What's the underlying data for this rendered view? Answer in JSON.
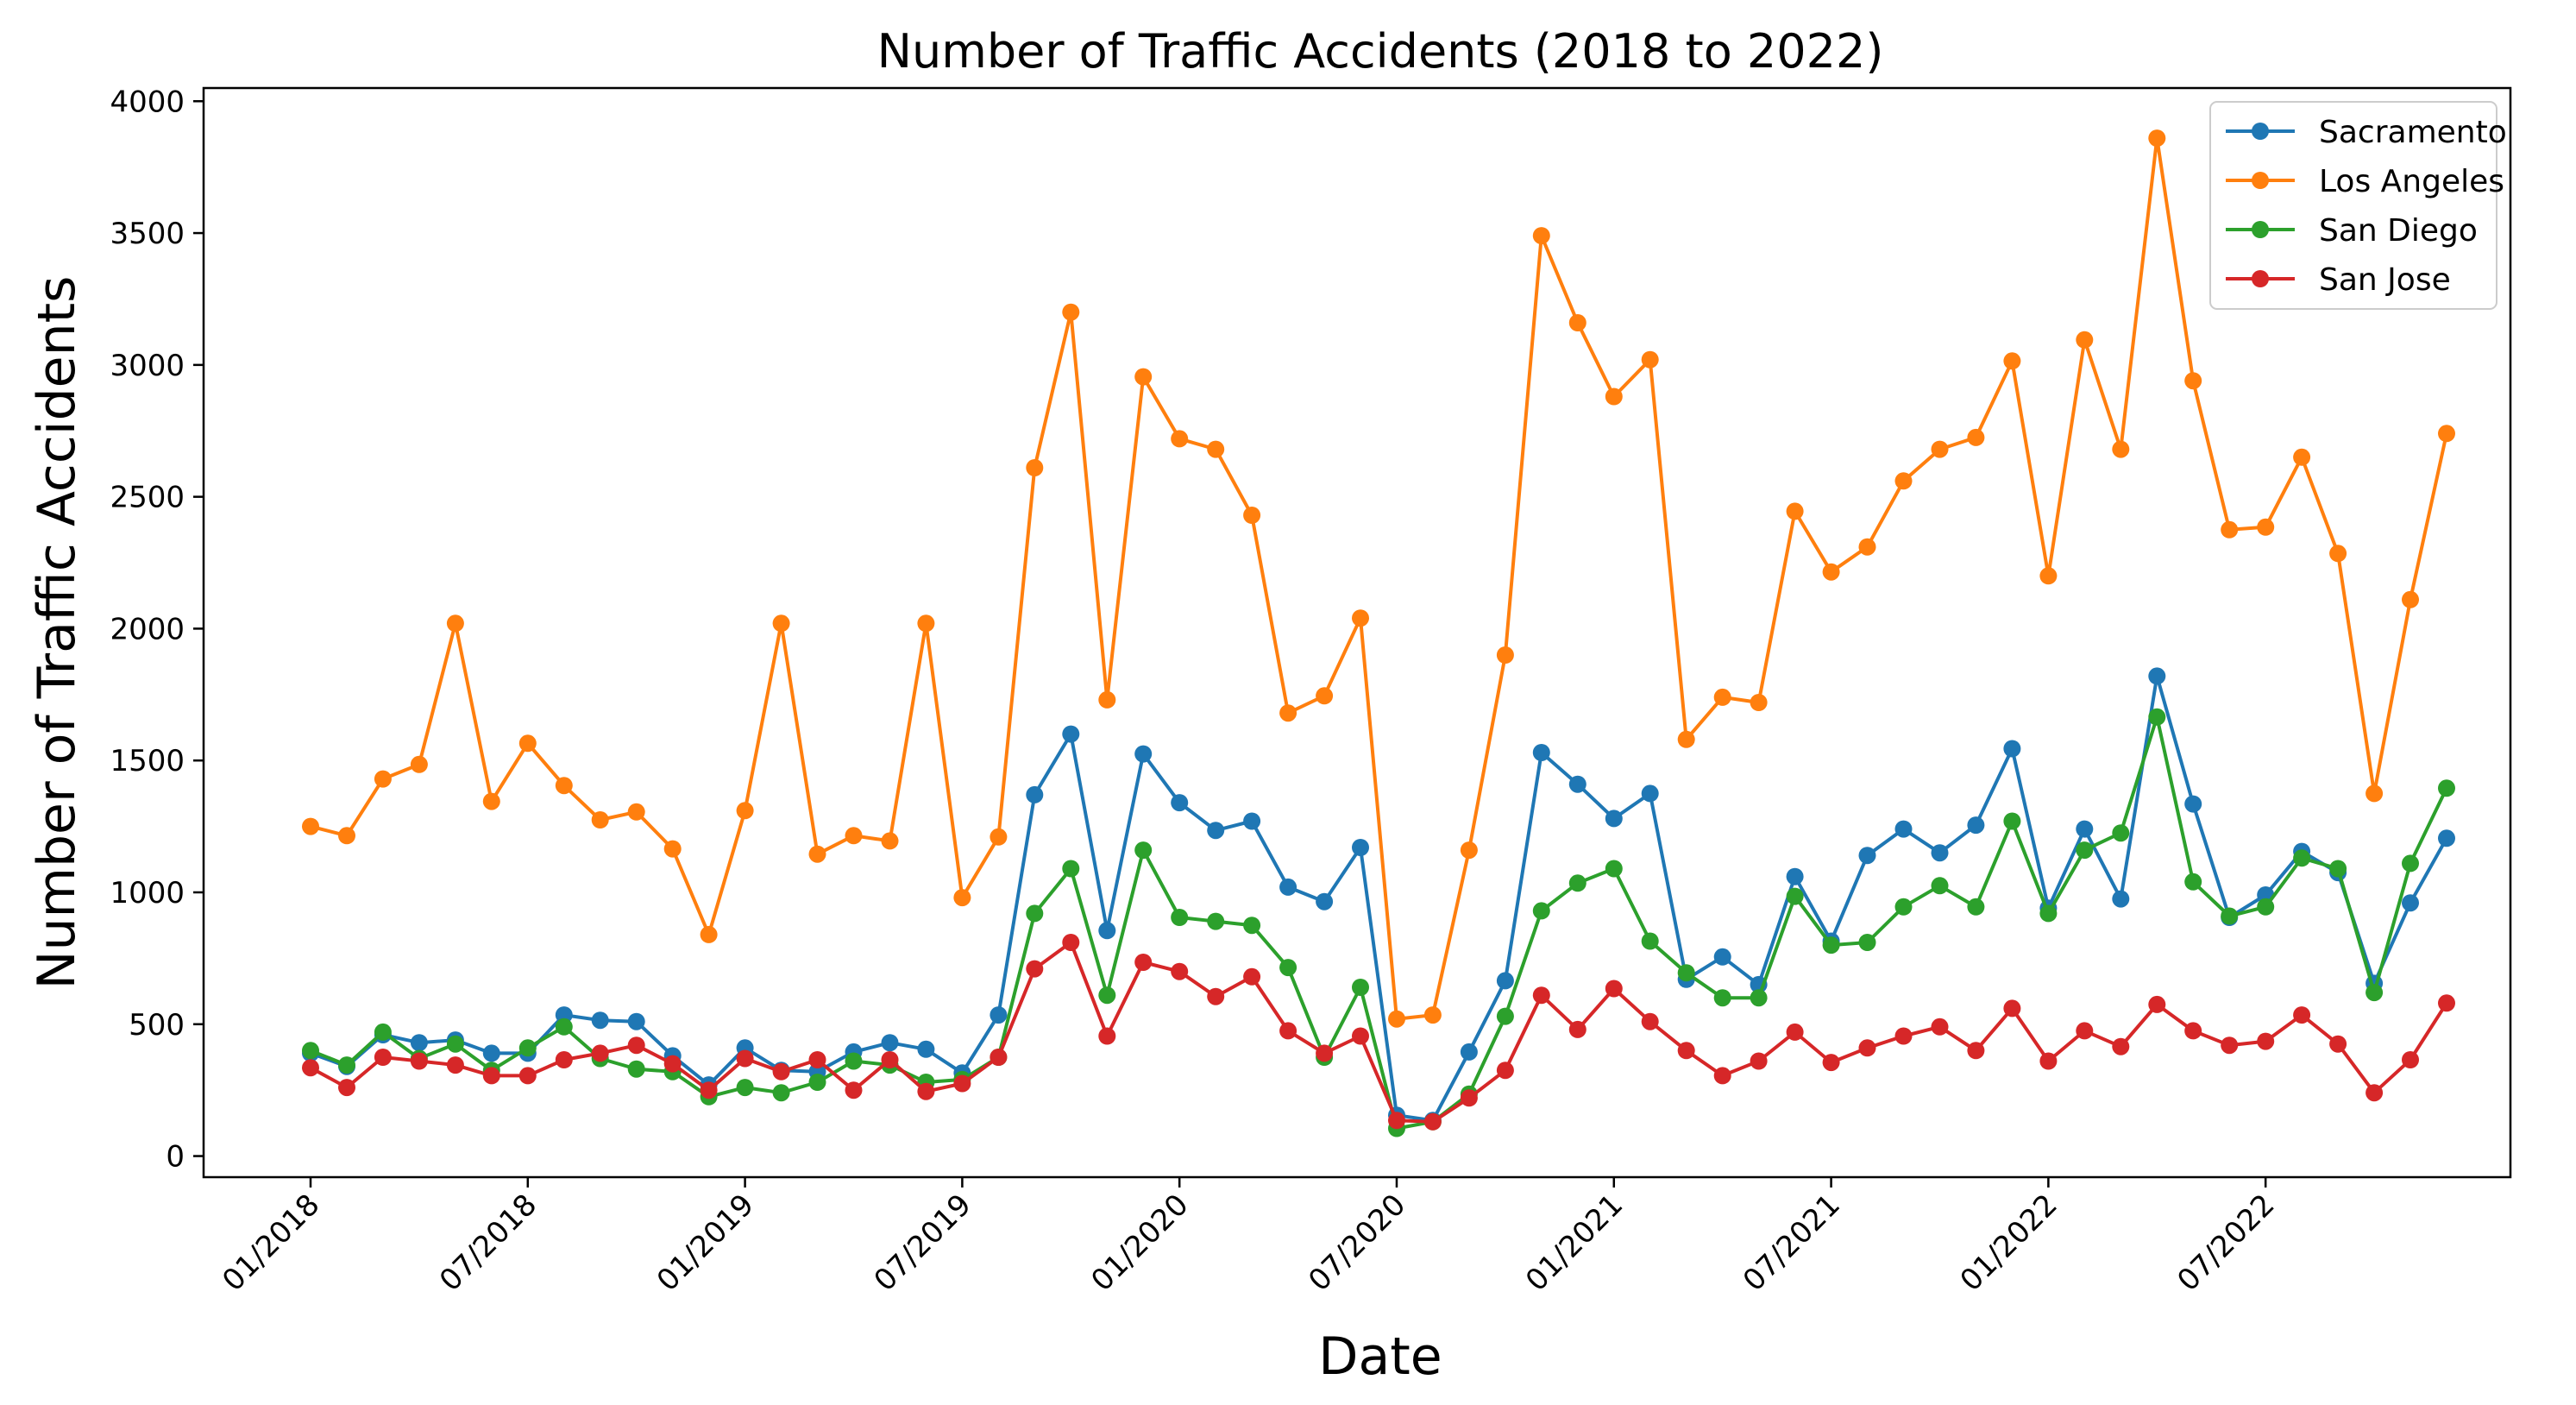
{
  "chart_data": {
    "type": "line",
    "title": "Number of Traffic Accidents (2018 to 2022)",
    "xlabel": "Date",
    "ylabel": "Number of Traffic Accidents",
    "ylim": [
      -80,
      4050
    ],
    "yticks": [
      0,
      500,
      1000,
      1500,
      2000,
      2500,
      3000,
      3500,
      4000
    ],
    "x_start": "01/2018",
    "x_frequency": "monthly",
    "xticks": [
      {
        "index": 0,
        "label": "01/2018"
      },
      {
        "index": 6,
        "label": "07/2018"
      },
      {
        "index": 12,
        "label": "01/2019"
      },
      {
        "index": 18,
        "label": "07/2019"
      },
      {
        "index": 24,
        "label": "01/2020"
      },
      {
        "index": 30,
        "label": "07/2020"
      },
      {
        "index": 36,
        "label": "01/2021"
      },
      {
        "index": 42,
        "label": "07/2021"
      },
      {
        "index": 48,
        "label": "01/2022"
      },
      {
        "index": 54,
        "label": "07/2022"
      }
    ],
    "grid": false,
    "legend_position": "top-right",
    "series": [
      {
        "name": "Sacramento",
        "color": "#1f77b4",
        "values": [
          390,
          340,
          460,
          430,
          440,
          390,
          390,
          535,
          515,
          510,
          380,
          270,
          410,
          325,
          320,
          395,
          430,
          405,
          315,
          535,
          1370,
          1600,
          855,
          1525,
          1340,
          1235,
          1270,
          1020,
          965,
          1170,
          155,
          135,
          395,
          665,
          1530,
          1410,
          1280,
          1375,
          670,
          755,
          650,
          1060,
          815,
          1140,
          1240,
          1150,
          1255,
          1545,
          940,
          1240,
          975,
          1820,
          1335,
          905,
          990,
          1155,
          1075,
          655,
          960,
          1205
        ]
      },
      {
        "name": "Los Angeles",
        "color": "#ff7f0e",
        "values": [
          1250,
          1215,
          1430,
          1485,
          2020,
          1345,
          1565,
          1405,
          1275,
          1305,
          1165,
          840,
          1310,
          2020,
          1145,
          1215,
          1195,
          2020,
          980,
          1210,
          2610,
          3200,
          1730,
          2955,
          2720,
          2680,
          2430,
          1680,
          1745,
          2040,
          520,
          535,
          1160,
          1900,
          3490,
          3160,
          2880,
          3020,
          1580,
          1740,
          1720,
          2445,
          2215,
          2310,
          2560,
          2680,
          2725,
          3015,
          2200,
          3095,
          2680,
          3860,
          2940,
          2375,
          2385,
          2650,
          2285,
          1375,
          2110,
          2740
        ]
      },
      {
        "name": "San Diego",
        "color": "#2ca02c",
        "values": [
          400,
          345,
          470,
          370,
          425,
          325,
          410,
          490,
          370,
          330,
          320,
          225,
          260,
          240,
          280,
          360,
          345,
          280,
          290,
          375,
          920,
          1090,
          610,
          1160,
          905,
          890,
          875,
          715,
          375,
          640,
          105,
          130,
          235,
          530,
          930,
          1035,
          1090,
          815,
          695,
          600,
          600,
          985,
          800,
          810,
          945,
          1025,
          945,
          1270,
          920,
          1160,
          1225,
          1665,
          1040,
          910,
          945,
          1130,
          1090,
          620,
          1110,
          1395
        ]
      },
      {
        "name": "San Jose",
        "color": "#d62728",
        "values": [
          335,
          260,
          375,
          360,
          345,
          305,
          305,
          365,
          390,
          420,
          350,
          250,
          370,
          320,
          365,
          250,
          365,
          245,
          275,
          375,
          710,
          810,
          455,
          735,
          700,
          605,
          680,
          475,
          390,
          455,
          135,
          130,
          220,
          325,
          610,
          480,
          635,
          510,
          400,
          305,
          360,
          470,
          355,
          410,
          455,
          490,
          400,
          560,
          360,
          475,
          415,
          575,
          475,
          420,
          435,
          535,
          425,
          240,
          365,
          580
        ]
      }
    ]
  }
}
